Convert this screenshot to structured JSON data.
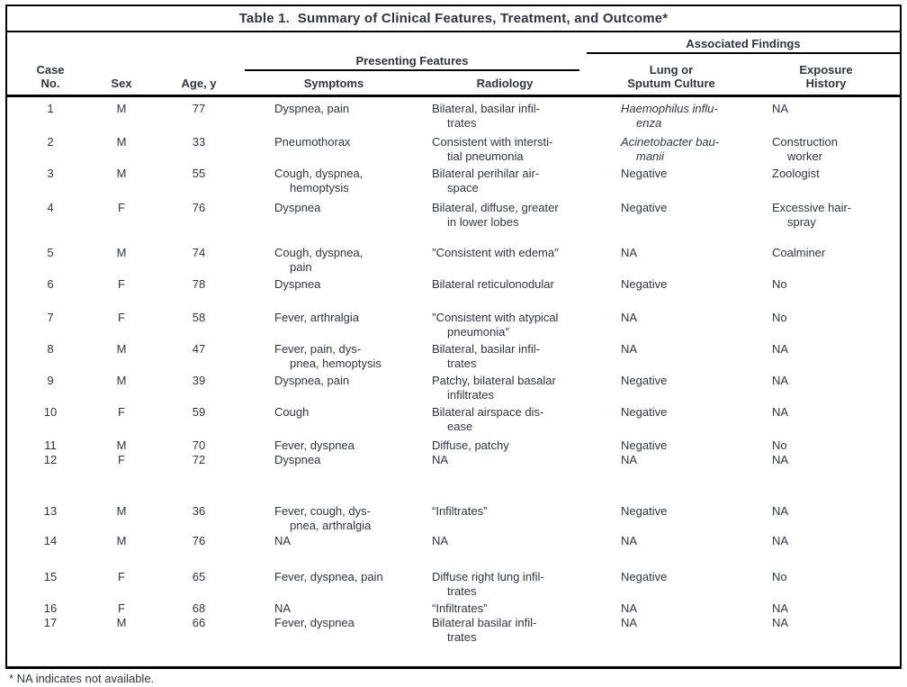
{
  "table": {
    "title": "Table 1.  Summary of Clinical Features, Treatment, and Outcome*",
    "header": {
      "case_no": "Case\nNo.",
      "sex": "Sex",
      "age": "Age, y",
      "presenting_features": "Presenting Features",
      "symptoms": "Symptoms",
      "radiology": "Radiology",
      "associated_findings": "Associated Findings",
      "culture": "Lung or\nSputum Culture",
      "exposure": "Exposure\nHistory"
    },
    "rows": [
      {
        "no": "1",
        "sex": "M",
        "age": "77",
        "symptoms": "Dyspnea, pain",
        "radiology": "Bilateral, basilar infil-\ntrates",
        "culture": "Haemophilus influ-\nenza",
        "culture_italic": true,
        "exposure": "NA"
      },
      {
        "no": "2",
        "sex": "M",
        "age": "33",
        "symptoms": "Pneumothorax",
        "radiology": "Consistent with intersti-\ntial pneumonia",
        "culture": "Acinetobacter bau-\nmanii",
        "culture_italic": true,
        "exposure": "Construction\nworker"
      },
      {
        "no": "3",
        "sex": "M",
        "age": "55",
        "symptoms": "Cough, dyspnea,\nhemoptysis",
        "radiology": "Bilateral perihilar air-\nspace",
        "culture": "Negative",
        "culture_italic": false,
        "exposure": "Zoologist"
      },
      {
        "no": "4",
        "sex": "F",
        "age": "76",
        "symptoms": "Dyspnea",
        "radiology": "Bilateral, diffuse, greater\nin lower lobes",
        "culture": "Negative",
        "culture_italic": false,
        "exposure": "Excessive hair-\nspray"
      },
      {
        "no": "5",
        "sex": "M",
        "age": "74",
        "symptoms": "Cough, dyspnea,\npain",
        "radiology": "″Consistent with edema″",
        "culture": "NA",
        "culture_italic": false,
        "exposure": "Coalminer"
      },
      {
        "no": "6",
        "sex": "F",
        "age": "78",
        "symptoms": "Dyspnea",
        "radiology": "Bilateral reticulonodular",
        "culture": "Negative",
        "culture_italic": false,
        "exposure": "No"
      },
      {
        "no": "7",
        "sex": "F",
        "age": "58",
        "symptoms": "Fever, arthralgia",
        "radiology": "″Consistent with atypical\npneumonia″",
        "culture": "NA",
        "culture_italic": false,
        "exposure": "No"
      },
      {
        "no": "8",
        "sex": "M",
        "age": "47",
        "symptoms": "Fever, pain, dys-\npnea, hemoptysis",
        "radiology": "Bilateral, basilar infil-\ntrates",
        "culture": "NA",
        "culture_italic": false,
        "exposure": "NA"
      },
      {
        "no": "9",
        "sex": "M",
        "age": "39",
        "symptoms": "Dyspnea, pain",
        "radiology": "Patchy, bilateral basalar\ninfiltrates",
        "culture": "Negative",
        "culture_italic": false,
        "exposure": "NA"
      },
      {
        "no": "10",
        "sex": "F",
        "age": "59",
        "symptoms": "Cough",
        "radiology": "Bilateral airspace dis-\nease",
        "culture": "Negative",
        "culture_italic": false,
        "exposure": "NA"
      },
      {
        "no": "11",
        "sex": "M",
        "age": "70",
        "symptoms": "Fever, dyspnea",
        "radiology": "Diffuse, patchy",
        "culture": "Negative",
        "culture_italic": false,
        "exposure": "No"
      },
      {
        "no": "12",
        "sex": "F",
        "age": "72",
        "symptoms": "Dyspnea",
        "radiology": "NA",
        "culture": "NA",
        "culture_italic": false,
        "exposure": "NA"
      },
      {
        "no": "13",
        "sex": "M",
        "age": "36",
        "symptoms": "Fever, cough, dys-\npnea, arthralgia",
        "radiology": "“Infiltrates”",
        "culture": "Negative",
        "culture_italic": false,
        "exposure": "NA"
      },
      {
        "no": "14",
        "sex": "M",
        "age": "76",
        "symptoms": "NA",
        "radiology": "NA",
        "culture": "NA",
        "culture_italic": false,
        "exposure": "NA"
      },
      {
        "no": "15",
        "sex": "F",
        "age": "65",
        "symptoms": "Fever, dyspnea, pain",
        "radiology": "Diffuse right lung infil-\ntrates",
        "culture": "Negative",
        "culture_italic": false,
        "exposure": "No"
      },
      {
        "no": "16",
        "sex": "F",
        "age": "68",
        "symptoms": "NA",
        "radiology": "“Infiltrates”",
        "culture": "NA",
        "culture_italic": false,
        "exposure": "NA"
      },
      {
        "no": "17",
        "sex": "M",
        "age": "66",
        "symptoms": "Fever, dyspnea",
        "radiology": "Bilateral basilar infil-\ntrates",
        "culture": "NA",
        "culture_italic": false,
        "exposure": "NA"
      }
    ],
    "footnote": "* NA indicates not available."
  }
}
